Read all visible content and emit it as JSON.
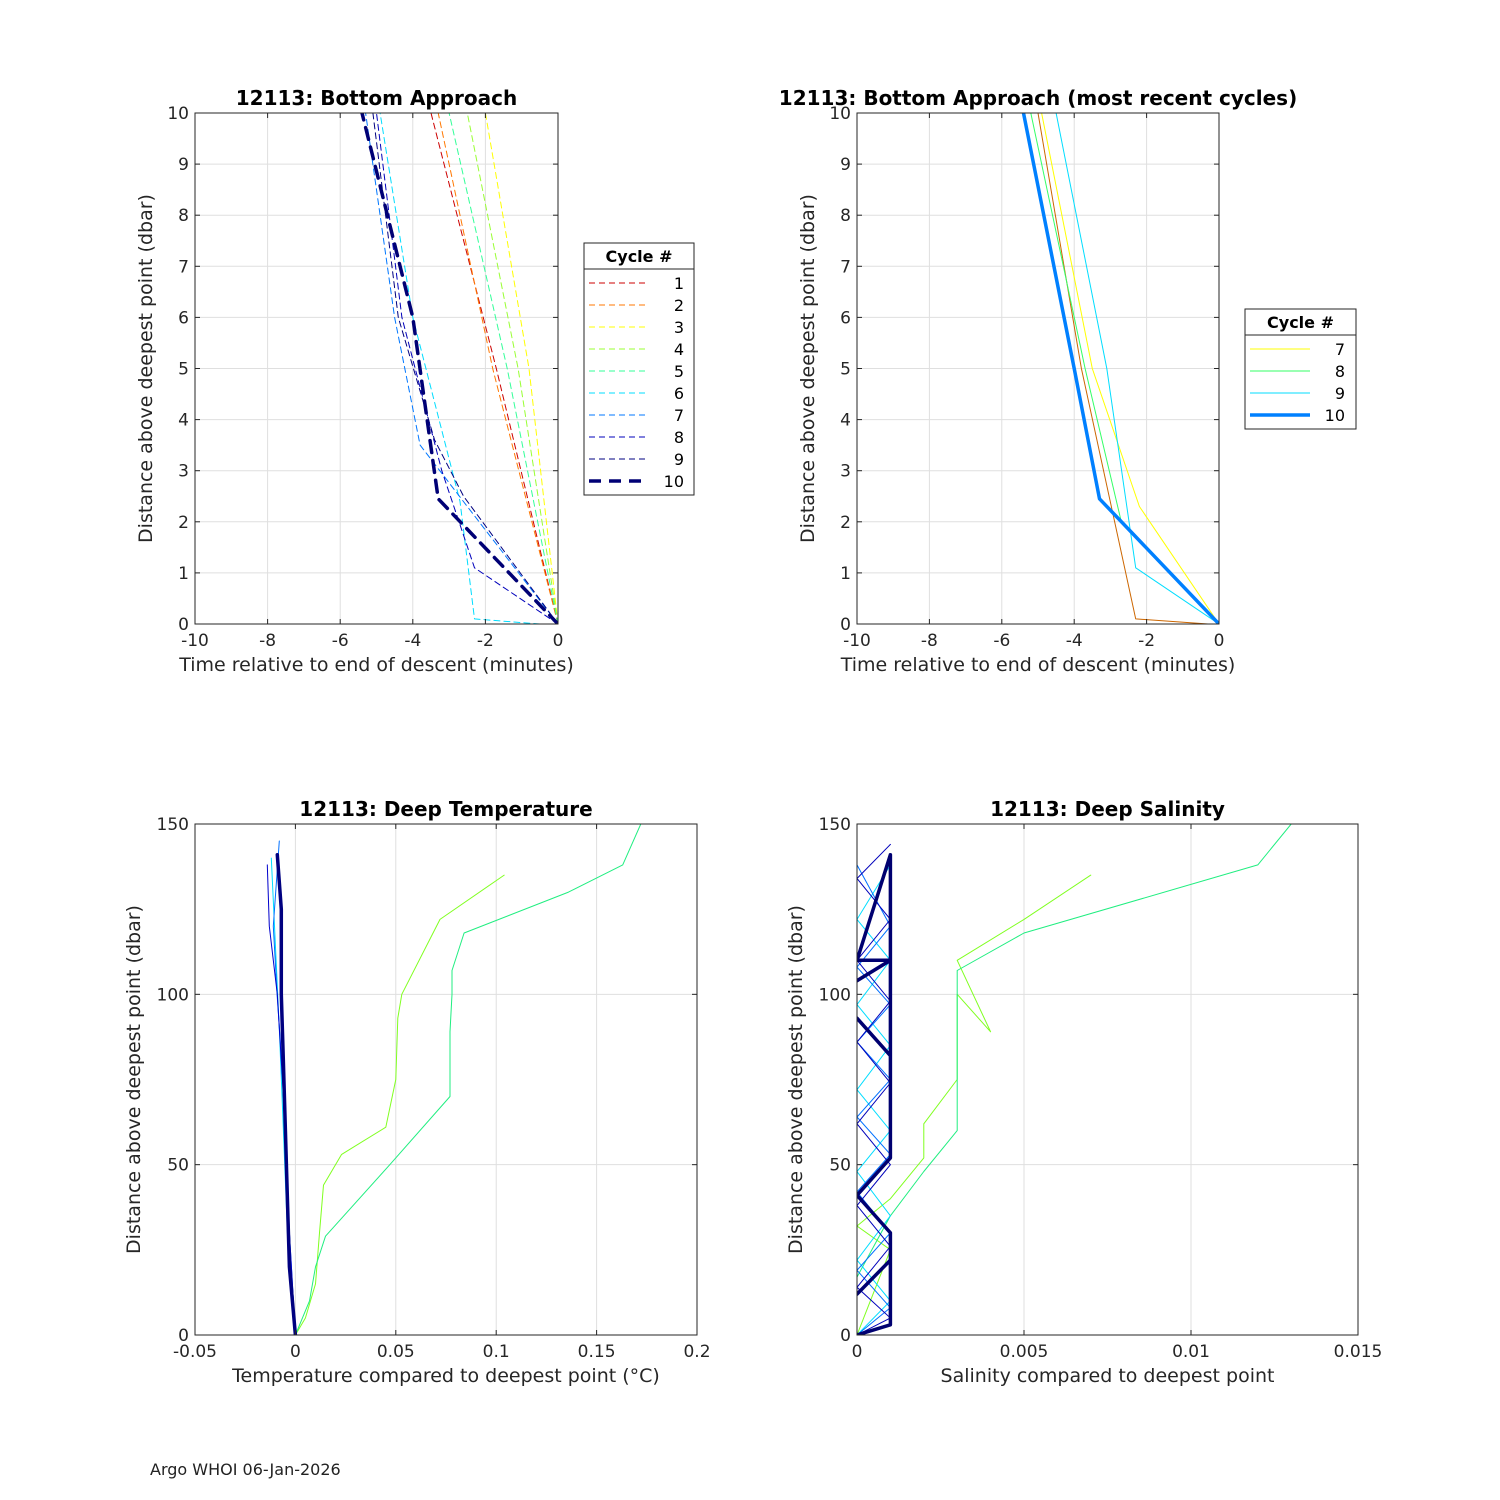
{
  "footer": "Argo WHOI 06-Jan-2026",
  "chart_data": [
    {
      "type": "line",
      "title": "12113: Bottom Approach",
      "xlabel": "Time relative to end of descent (minutes)",
      "ylabel": "Distance above deepest point (dbar)",
      "xlim": [
        -10,
        0
      ],
      "ylim": [
        0,
        10
      ],
      "xticks": [
        -10,
        -8,
        -6,
        -4,
        -2,
        0
      ],
      "yticks": [
        0,
        1,
        2,
        3,
        4,
        5,
        6,
        7,
        8,
        9,
        10
      ],
      "grid": true,
      "legend": {
        "title": "Cycle #",
        "placement": "right-outside"
      },
      "series": [
        {
          "name": "1",
          "color": "#cc0000",
          "dash": true,
          "width": 1,
          "x": [
            0,
            -1.7,
            -3.5
          ],
          "y": [
            0,
            5,
            10
          ]
        },
        {
          "name": "2",
          "color": "#ff7700",
          "dash": true,
          "width": 1,
          "x": [
            0,
            -1.8,
            -3.3
          ],
          "y": [
            0,
            5,
            10
          ]
        },
        {
          "name": "3",
          "color": "#ffff00",
          "dash": true,
          "width": 1,
          "x": [
            0,
            -0.8,
            -2.0
          ],
          "y": [
            0,
            5,
            10
          ]
        },
        {
          "name": "4",
          "color": "#99ff33",
          "dash": true,
          "width": 1,
          "x": [
            0,
            -1.1,
            -2.5
          ],
          "y": [
            0,
            5,
            10
          ]
        },
        {
          "name": "5",
          "color": "#33ff99",
          "dash": true,
          "width": 1,
          "x": [
            0,
            -1.4,
            -3.0
          ],
          "y": [
            0,
            5,
            10
          ]
        },
        {
          "name": "6",
          "color": "#00ddff",
          "dash": true,
          "width": 1,
          "x": [
            -0.5,
            -2.3,
            -2.7,
            -4.0,
            -4.9
          ],
          "y": [
            0,
            0.1,
            2.4,
            6,
            10
          ]
        },
        {
          "name": "7",
          "color": "#0077ff",
          "dash": true,
          "width": 1,
          "x": [
            0,
            -2.5,
            -3.8,
            -4.5,
            -5.3
          ],
          "y": [
            0,
            2.3,
            3.5,
            6,
            10
          ]
        },
        {
          "name": "8",
          "color": "#0000bb",
          "dash": true,
          "width": 1,
          "x": [
            0,
            -2.3,
            -3.2,
            -4.3,
            -5.0
          ],
          "y": [
            0,
            1.1,
            3.0,
            6,
            10
          ]
        },
        {
          "name": "9",
          "color": "#000080",
          "dash": true,
          "width": 1,
          "x": [
            0,
            -2.6,
            -3.4,
            -4.4,
            -5.1
          ],
          "y": [
            0,
            2.5,
            3.6,
            6,
            10
          ]
        },
        {
          "name": "10",
          "color": "#000075",
          "dash": true,
          "width": 3.5,
          "x": [
            0,
            -3.3,
            -4.0,
            -5.4
          ],
          "y": [
            0,
            2.45,
            6,
            10
          ]
        }
      ]
    },
    {
      "type": "line",
      "title": "12113: Bottom Approach (most recent cycles)",
      "xlabel": "Time relative to end of descent (minutes)",
      "ylabel": "Distance above deepest point (dbar)",
      "xlim": [
        -10,
        0
      ],
      "ylim": [
        0,
        10
      ],
      "xticks": [
        -10,
        -8,
        -6,
        -4,
        -2,
        0
      ],
      "yticks": [
        0,
        1,
        2,
        3,
        4,
        5,
        6,
        7,
        8,
        9,
        10
      ],
      "grid": true,
      "legend": {
        "title": "Cycle #",
        "placement": "right-outside"
      },
      "series": [
        {
          "name": "",
          "color": "#cc6600",
          "dash": false,
          "width": 1,
          "x": [
            -0.3,
            -2.3,
            -3.8,
            -5.0
          ],
          "y": [
            0,
            0.1,
            5,
            10
          ]
        },
        {
          "name": "7",
          "color": "#ffff00",
          "dash": false,
          "width": 1,
          "x": [
            0,
            -2.2,
            -3.5,
            -4.9
          ],
          "y": [
            0,
            2.3,
            5,
            10
          ]
        },
        {
          "name": "8",
          "color": "#33ff66",
          "dash": false,
          "width": 1,
          "x": [
            0,
            -2.7,
            -3.7,
            -5.2
          ],
          "y": [
            0,
            2.0,
            5,
            10
          ]
        },
        {
          "name": "9",
          "color": "#00ddff",
          "dash": false,
          "width": 1,
          "x": [
            0,
            -2.3,
            -3.1,
            -4.5
          ],
          "y": [
            0,
            1.1,
            5,
            10
          ]
        },
        {
          "name": "10",
          "color": "#0080ff",
          "dash": false,
          "width": 3.5,
          "x": [
            0,
            -3.3,
            -4.0,
            -5.4
          ],
          "y": [
            0,
            2.45,
            5,
            10
          ]
        }
      ]
    },
    {
      "type": "line",
      "title": "12113: Deep Temperature",
      "xlabel": "Temperature compared to deepest point (°C)",
      "ylabel": "Distance above deepest point (dbar)",
      "xlim": [
        -0.05,
        0.2
      ],
      "ylim": [
        0,
        150
      ],
      "xticks": [
        -0.05,
        0,
        0.05,
        0.1,
        0.15,
        0.2
      ],
      "yticks": [
        0,
        50,
        100,
        150
      ],
      "grid": true,
      "series": [
        {
          "name": "",
          "color": "#80ff20",
          "width": 1,
          "x": [
            0,
            0.005,
            0.01,
            0.012,
            0.014,
            0.023,
            0.045,
            0.05,
            0.051,
            0.053,
            0.072,
            0.104
          ],
          "y": [
            0,
            5,
            15,
            30,
            44,
            53,
            61,
            75,
            93,
            100,
            122,
            135
          ]
        },
        {
          "name": "",
          "color": "#20ee80",
          "width": 1,
          "x": [
            0,
            0.007,
            0.01,
            0.015,
            0.047,
            0.077,
            0.077,
            0.078,
            0.078,
            0.084,
            0.136,
            0.163,
            0.172
          ],
          "y": [
            0,
            10,
            20,
            29,
            50,
            70,
            89,
            100,
            107,
            118,
            130,
            138,
            150
          ]
        },
        {
          "name": "",
          "color": "#00ddff",
          "width": 1,
          "x": [
            0,
            -0.004,
            -0.006,
            -0.008,
            -0.01,
            -0.012
          ],
          "y": [
            0,
            30,
            60,
            90,
            115,
            140
          ]
        },
        {
          "name": "",
          "color": "#0070ff",
          "width": 1,
          "x": [
            0,
            -0.003,
            -0.005,
            -0.009,
            -0.011,
            -0.008
          ],
          "y": [
            0,
            30,
            65,
            99,
            120,
            145
          ]
        },
        {
          "name": "",
          "color": "#0000cc",
          "width": 1,
          "x": [
            0,
            -0.003,
            -0.006,
            -0.009,
            -0.013,
            -0.014
          ],
          "y": [
            0,
            30,
            70,
            100,
            120,
            138
          ]
        },
        {
          "name": "",
          "color": "#000080",
          "width": 3.5,
          "x": [
            0,
            -0.003,
            -0.004,
            -0.005,
            -0.006,
            -0.007,
            -0.007,
            -0.009
          ],
          "y": [
            0,
            20,
            40,
            60,
            80,
            100,
            125,
            141
          ]
        }
      ]
    },
    {
      "type": "line",
      "title": "12113: Deep Salinity",
      "xlabel": "Salinity compared to deepest point",
      "ylabel": "Distance above deepest point (dbar)",
      "xlim": [
        0,
        0.015
      ],
      "ylim": [
        0,
        150
      ],
      "xticks": [
        0,
        0.005,
        0.01,
        0.015
      ],
      "yticks": [
        0,
        50,
        100,
        150
      ],
      "grid": true,
      "series": [
        {
          "name": "",
          "color": "#80ff20",
          "width": 1,
          "x": [
            0,
            0.001,
            0,
            0.001,
            0.002,
            0.002,
            0.003,
            0.003,
            0.004,
            0.003,
            0.005,
            0.007
          ],
          "y": [
            0,
            25,
            32,
            40,
            52,
            62,
            75,
            100,
            89,
            110,
            122,
            135
          ]
        },
        {
          "name": "",
          "color": "#20ee80",
          "width": 1,
          "x": [
            0,
            0,
            0.001,
            0.002,
            0.003,
            0.003,
            0.003,
            0.003,
            0.005,
            0.012,
            0.013
          ],
          "y": [
            0,
            17,
            35,
            48,
            60,
            80,
            100,
            107,
            118,
            138,
            150
          ]
        },
        {
          "name": "",
          "color": "#00ddff",
          "width": 1,
          "x": [
            0,
            0.001,
            0,
            0.001,
            0,
            0.001,
            0,
            0.001,
            0,
            0.001,
            0,
            0.001
          ],
          "y": [
            0,
            10,
            22,
            35,
            48,
            60,
            72,
            85,
            97,
            110,
            122,
            138
          ]
        },
        {
          "name": "",
          "color": "#0070ff",
          "width": 1,
          "x": [
            0,
            0.001,
            0,
            0.001,
            0,
            0.001,
            0,
            0.001,
            0,
            0.001,
            0,
            0.001,
            0
          ],
          "y": [
            0,
            8,
            19,
            30,
            42,
            53,
            64,
            75,
            86,
            97,
            108,
            120,
            138
          ]
        },
        {
          "name": "",
          "color": "#0000bb",
          "width": 1,
          "x": [
            0,
            0.001,
            0,
            0.001,
            0,
            0.001,
            0,
            0.001,
            0,
            0.001,
            0,
            0.001,
            0,
            0.001
          ],
          "y": [
            0,
            5,
            14,
            26,
            38,
            50,
            62,
            74,
            86,
            98,
            110,
            122,
            134,
            144
          ]
        },
        {
          "name": "",
          "color": "#000070",
          "width": 3.5,
          "x": [
            0,
            0.001,
            0.001,
            0,
            0.001,
            0.001,
            0,
            0.001,
            0.001,
            0,
            0.001,
            0.001,
            0,
            0.001,
            0.001,
            0,
            0.001,
            0.001
          ],
          "y": [
            0,
            3,
            22,
            12,
            22,
            30,
            41,
            52,
            82,
            93,
            82,
            110,
            104,
            110,
            141,
            110,
            110,
            141
          ]
        }
      ]
    }
  ]
}
